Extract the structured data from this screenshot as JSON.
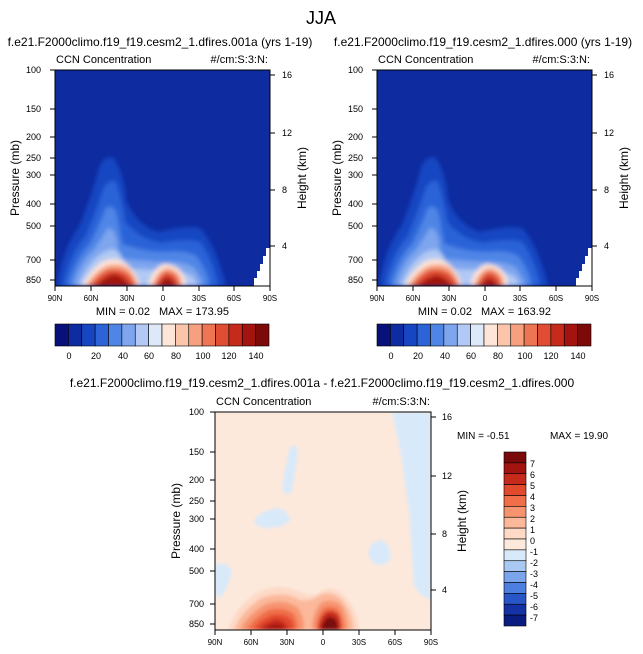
{
  "page_title": "JJA",
  "chart_data": [
    {
      "type": "contour",
      "title": "f.e21.F2000climo.f19_f19.cesm2_1.dfires.001a (yrs 1-19)",
      "left_subtitle": "CCN Concentration",
      "right_subtitle": "#/cm:S:3:N:",
      "xlabel": "",
      "ylabel": "Pressure (mb)",
      "y2label": "Height (km)",
      "x_ticks": [
        "90N",
        "60N",
        "30N",
        "0",
        "30S",
        "60S",
        "90S"
      ],
      "y_ticks": [
        "100",
        "150",
        "200",
        "250",
        "300",
        "400",
        "500",
        "700",
        "850"
      ],
      "y2_ticks": [
        "16",
        "12",
        "8",
        "4"
      ],
      "min_label": "MIN =  0.02",
      "max_label": "MAX = 173.95",
      "colorbar_labels": [
        "0",
        "20",
        "40",
        "60",
        "80",
        "100",
        "120",
        "140"
      ],
      "colorbar_colors": [
        "#08107a",
        "#0e2ba0",
        "#1746c2",
        "#2c64d8",
        "#4f86e6",
        "#7ea6ee",
        "#b1c9f4",
        "#dde8f9",
        "#fde5d8",
        "#fbc5ab",
        "#f6a07f",
        "#ee7554",
        "#e04d33",
        "#c62a1b",
        "#a3130f",
        "#7b0a09"
      ]
    },
    {
      "type": "contour",
      "title": "f.e21.F2000climo.f19_f19.cesm2_1.dfires.000 (yrs 1-19)",
      "left_subtitle": "CCN Concentration",
      "right_subtitle": "#/cm:S:3:N:",
      "xlabel": "",
      "ylabel": "Pressure (mb)",
      "y2label": "Height (km)",
      "x_ticks": [
        "90N",
        "60N",
        "30N",
        "0",
        "30S",
        "60S",
        "90S"
      ],
      "y_ticks": [
        "100",
        "150",
        "200",
        "250",
        "300",
        "400",
        "500",
        "700",
        "850"
      ],
      "y2_ticks": [
        "16",
        "12",
        "8",
        "4"
      ],
      "min_label": "MIN =  0.02",
      "max_label": "MAX = 163.92",
      "colorbar_labels": [
        "0",
        "20",
        "40",
        "60",
        "80",
        "100",
        "120",
        "140"
      ],
      "colorbar_colors": [
        "#08107a",
        "#0e2ba0",
        "#1746c2",
        "#2c64d8",
        "#4f86e6",
        "#7ea6ee",
        "#b1c9f4",
        "#dde8f9",
        "#fde5d8",
        "#fbc5ab",
        "#f6a07f",
        "#ee7554",
        "#e04d33",
        "#c62a1b",
        "#a3130f",
        "#7b0a09"
      ]
    },
    {
      "type": "contour",
      "title": "f.e21.F2000climo.f19_f19.cesm2_1.dfires.001a - f.e21.F2000climo.f19_f19.cesm2_1.dfires.000",
      "left_subtitle": "CCN Concentration",
      "right_subtitle": "#/cm:S:3:N:",
      "xlabel": "",
      "ylabel": "Pressure (mb)",
      "y2label": "Height (km)",
      "x_ticks": [
        "90N",
        "60N",
        "30N",
        "0",
        "30S",
        "60S",
        "90S"
      ],
      "y_ticks": [
        "100",
        "150",
        "200",
        "250",
        "300",
        "400",
        "500",
        "700",
        "850"
      ],
      "y2_ticks": [
        "16",
        "12",
        "8",
        "4"
      ],
      "min_label": "MIN = -0.51",
      "max_label": "MAX = 19.90",
      "colorbar_labels": [
        "7",
        "6",
        "5",
        "4",
        "3",
        "2",
        "1",
        "0",
        "-1",
        "-2",
        "-3",
        "-4",
        "-5",
        "-6",
        "-7"
      ],
      "colorbar_colors": [
        "#7a0a0a",
        "#a31410",
        "#c72a1c",
        "#e24a2e",
        "#f06e48",
        "#f79470",
        "#fbb89a",
        "#fdd9c6",
        "#fde9dc",
        "#d8e9fa",
        "#a9c9f3",
        "#7aa5ec",
        "#4d7fe0",
        "#2856c7",
        "#1432a3",
        "#0a1c80"
      ]
    }
  ]
}
